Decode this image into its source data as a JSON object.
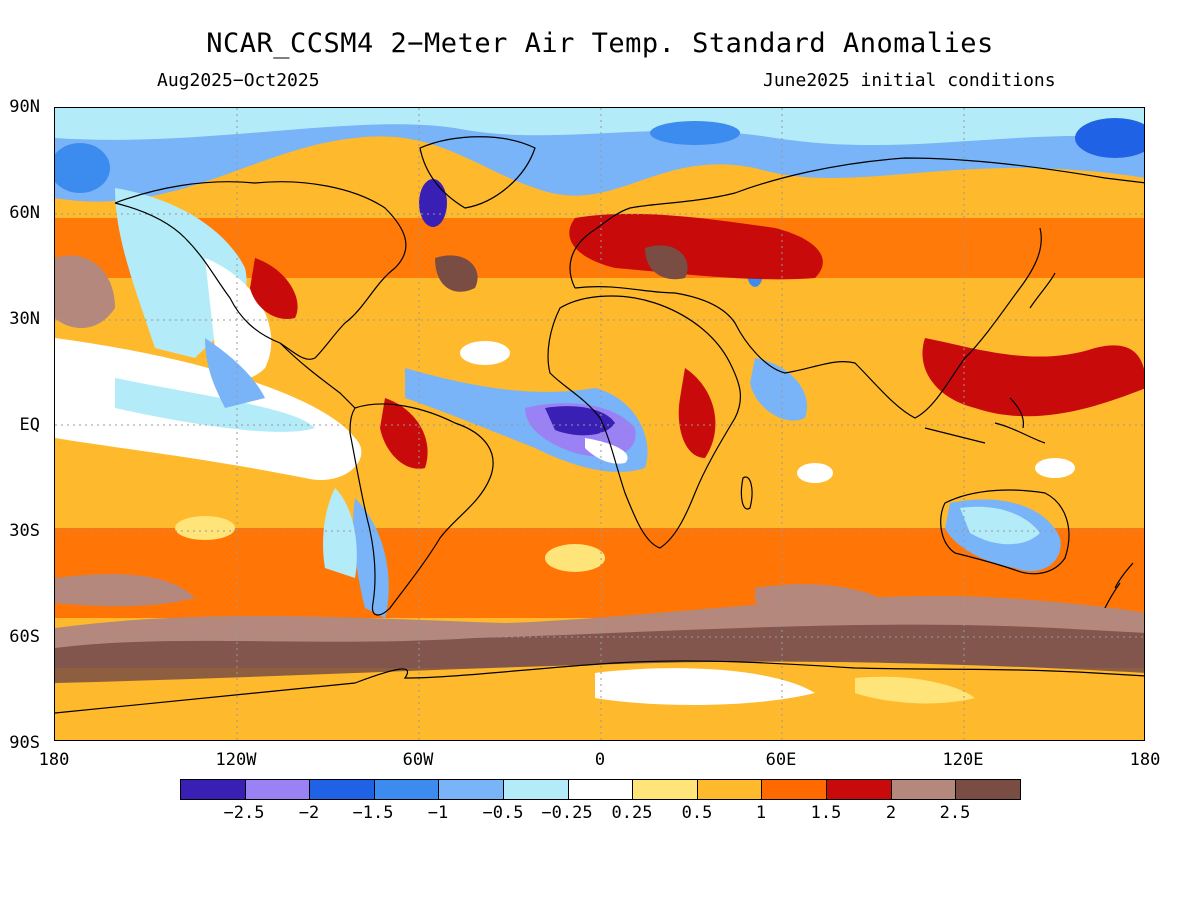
{
  "header": {
    "title": "NCAR_CCSM4 2-Meter Air Temp. Standard Anomalies",
    "period": "Aug2025-Oct2025",
    "init": "June2025 initial conditions"
  },
  "axes": {
    "lat_labels": [
      "90N",
      "60N",
      "30N",
      "EQ",
      "30S",
      "60S",
      "90S"
    ],
    "lon_labels": [
      "180",
      "120W",
      "60W",
      "0",
      "60E",
      "120E",
      "180"
    ]
  },
  "legend": {
    "colors": [
      "#3a1fb4",
      "#9a82f5",
      "#1f62e6",
      "#3c8cf0",
      "#78b4f7",
      "#b3ecf8",
      "#ffffff",
      "#ffe47a",
      "#ffb92d",
      "#ff6a00",
      "#c80a0a",
      "#b5887e",
      "#7a4d44"
    ],
    "labels": [
      "-2.5",
      "-2",
      "-1.5",
      "-1",
      "-0.5",
      "-0.25",
      "0.25",
      "0.5",
      "1",
      "1.5",
      "2",
      "2.5"
    ]
  }
}
